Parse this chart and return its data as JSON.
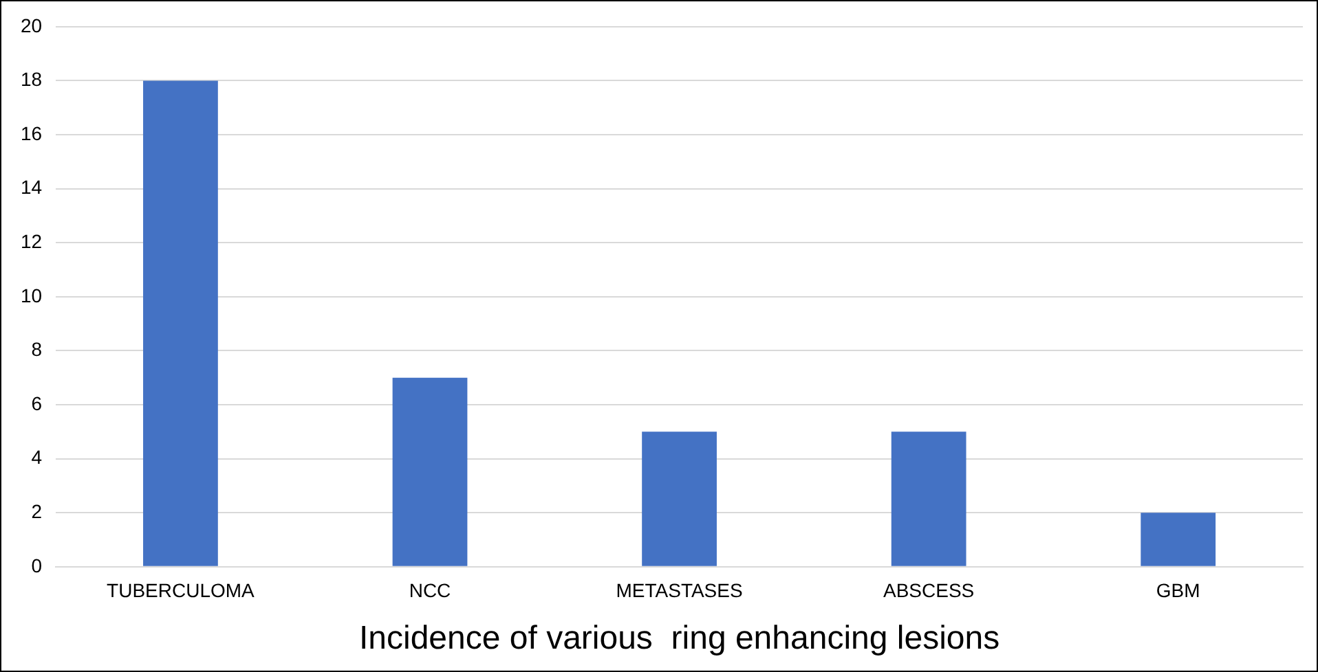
{
  "chart_data": {
    "type": "bar",
    "xlabel": "Incidence of various  ring enhancing lesions",
    "categories": [
      "TUBERCULOMA",
      "NCC",
      "METASTASES",
      "ABSCESS",
      "GBM"
    ],
    "values": [
      18,
      7,
      5,
      5,
      2
    ],
    "color": "#4472c4",
    "ylim": [
      0,
      20
    ],
    "yticks": [
      0,
      2,
      4,
      6,
      8,
      10,
      12,
      14,
      16,
      18,
      20
    ],
    "grid": "y",
    "legend": false
  }
}
